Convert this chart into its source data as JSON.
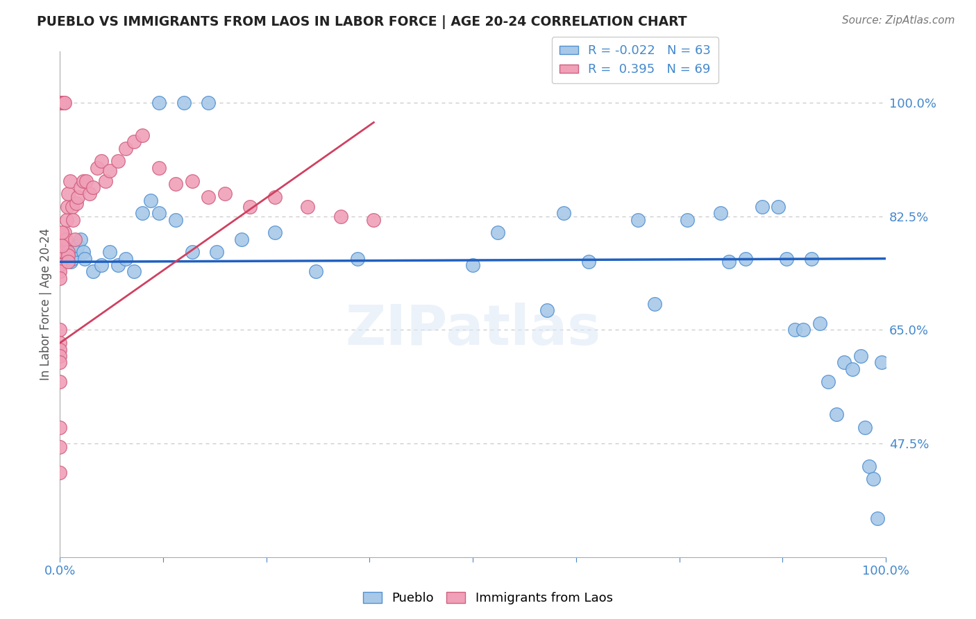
{
  "title": "PUEBLO VS IMMIGRANTS FROM LAOS IN LABOR FORCE | AGE 20-24 CORRELATION CHART",
  "source": "Source: ZipAtlas.com",
  "ylabel": "In Labor Force | Age 20-24",
  "watermark": "ZIPatlas",
  "xlim": [
    0.0,
    1.0
  ],
  "ylim": [
    0.3,
    1.08
  ],
  "y_tick_vals_right": [
    0.475,
    0.65,
    0.825,
    1.0
  ],
  "y_tick_labels_right": [
    "47.5%",
    "65.0%",
    "82.5%",
    "100.0%"
  ],
  "grid_color": "#c8c8c8",
  "background_color": "#ffffff",
  "blue_color": "#a8c8e8",
  "blue_edge": "#5090d0",
  "pink_color": "#f0a0b8",
  "pink_edge": "#d06080",
  "trend_blue_color": "#2060c0",
  "trend_pink_color": "#d04060",
  "legend_r_blue": "-0.022",
  "legend_n_blue": "63",
  "legend_r_pink": "0.395",
  "legend_n_pink": "69",
  "blue_scatter_x": [
    0.003,
    0.005,
    0.006,
    0.007,
    0.008,
    0.01,
    0.012,
    0.013,
    0.015,
    0.016,
    0.018,
    0.02,
    0.022,
    0.025,
    0.028,
    0.03,
    0.04,
    0.05,
    0.06,
    0.07,
    0.08,
    0.09,
    0.1,
    0.11,
    0.12,
    0.14,
    0.16,
    0.19,
    0.22,
    0.26,
    0.31,
    0.36,
    0.5,
    0.53,
    0.59,
    0.61,
    0.64,
    0.7,
    0.72,
    0.76,
    0.8,
    0.81,
    0.83,
    0.85,
    0.87,
    0.88,
    0.89,
    0.9,
    0.91,
    0.92,
    0.93,
    0.94,
    0.95,
    0.96,
    0.97,
    0.975,
    0.98,
    0.985,
    0.99,
    0.995,
    0.12,
    0.15,
    0.18
  ],
  "blue_scatter_y": [
    0.775,
    0.76,
    0.755,
    0.77,
    0.765,
    0.775,
    0.77,
    0.755,
    0.76,
    0.77,
    0.765,
    0.775,
    0.78,
    0.79,
    0.77,
    0.76,
    0.74,
    0.75,
    0.77,
    0.75,
    0.76,
    0.74,
    0.83,
    0.85,
    0.83,
    0.82,
    0.77,
    0.77,
    0.79,
    0.8,
    0.74,
    0.76,
    0.75,
    0.8,
    0.68,
    0.83,
    0.755,
    0.82,
    0.69,
    0.82,
    0.83,
    0.755,
    0.76,
    0.84,
    0.84,
    0.76,
    0.65,
    0.65,
    0.76,
    0.66,
    0.57,
    0.52,
    0.6,
    0.59,
    0.61,
    0.5,
    0.44,
    0.42,
    0.36,
    0.6,
    1.0,
    1.0,
    1.0
  ],
  "pink_scatter_x": [
    0.0,
    0.0,
    0.0,
    0.0,
    0.0,
    0.0,
    0.0,
    0.0,
    0.0,
    0.0,
    0.0,
    0.0,
    0.0,
    0.002,
    0.002,
    0.003,
    0.003,
    0.004,
    0.005,
    0.005,
    0.006,
    0.006,
    0.007,
    0.008,
    0.009,
    0.01,
    0.012,
    0.015,
    0.016,
    0.018,
    0.02,
    0.022,
    0.025,
    0.028,
    0.032,
    0.036,
    0.04,
    0.045,
    0.05,
    0.055,
    0.06,
    0.07,
    0.08,
    0.09,
    0.1,
    0.12,
    0.14,
    0.16,
    0.18,
    0.2,
    0.23,
    0.26,
    0.3,
    0.34,
    0.38,
    0.01,
    0.01,
    0.01,
    0.002,
    0.002,
    0.0,
    0.0,
    0.0,
    0.0,
    0.0,
    0.0,
    0.0,
    0.0,
    0.0
  ],
  "pink_scatter_y": [
    1.0,
    1.0,
    1.0,
    1.0,
    1.0,
    1.0,
    1.0,
    1.0,
    0.77,
    0.76,
    0.75,
    0.74,
    0.73,
    1.0,
    1.0,
    1.0,
    0.78,
    1.0,
    1.0,
    0.77,
    1.0,
    0.8,
    0.79,
    0.82,
    0.84,
    0.86,
    0.88,
    0.84,
    0.82,
    0.79,
    0.845,
    0.855,
    0.87,
    0.88,
    0.88,
    0.86,
    0.87,
    0.9,
    0.91,
    0.88,
    0.895,
    0.91,
    0.93,
    0.94,
    0.95,
    0.9,
    0.875,
    0.88,
    0.855,
    0.86,
    0.84,
    0.855,
    0.84,
    0.825,
    0.82,
    0.77,
    0.765,
    0.755,
    0.8,
    0.78,
    0.65,
    0.63,
    0.62,
    0.61,
    0.6,
    0.57,
    0.5,
    0.47,
    0.43
  ],
  "blue_trend_x": [
    0.0,
    1.0
  ],
  "blue_trend_y": [
    0.755,
    0.76
  ],
  "pink_trend_x": [
    0.0,
    0.38
  ],
  "pink_trend_y": [
    0.63,
    0.97
  ]
}
